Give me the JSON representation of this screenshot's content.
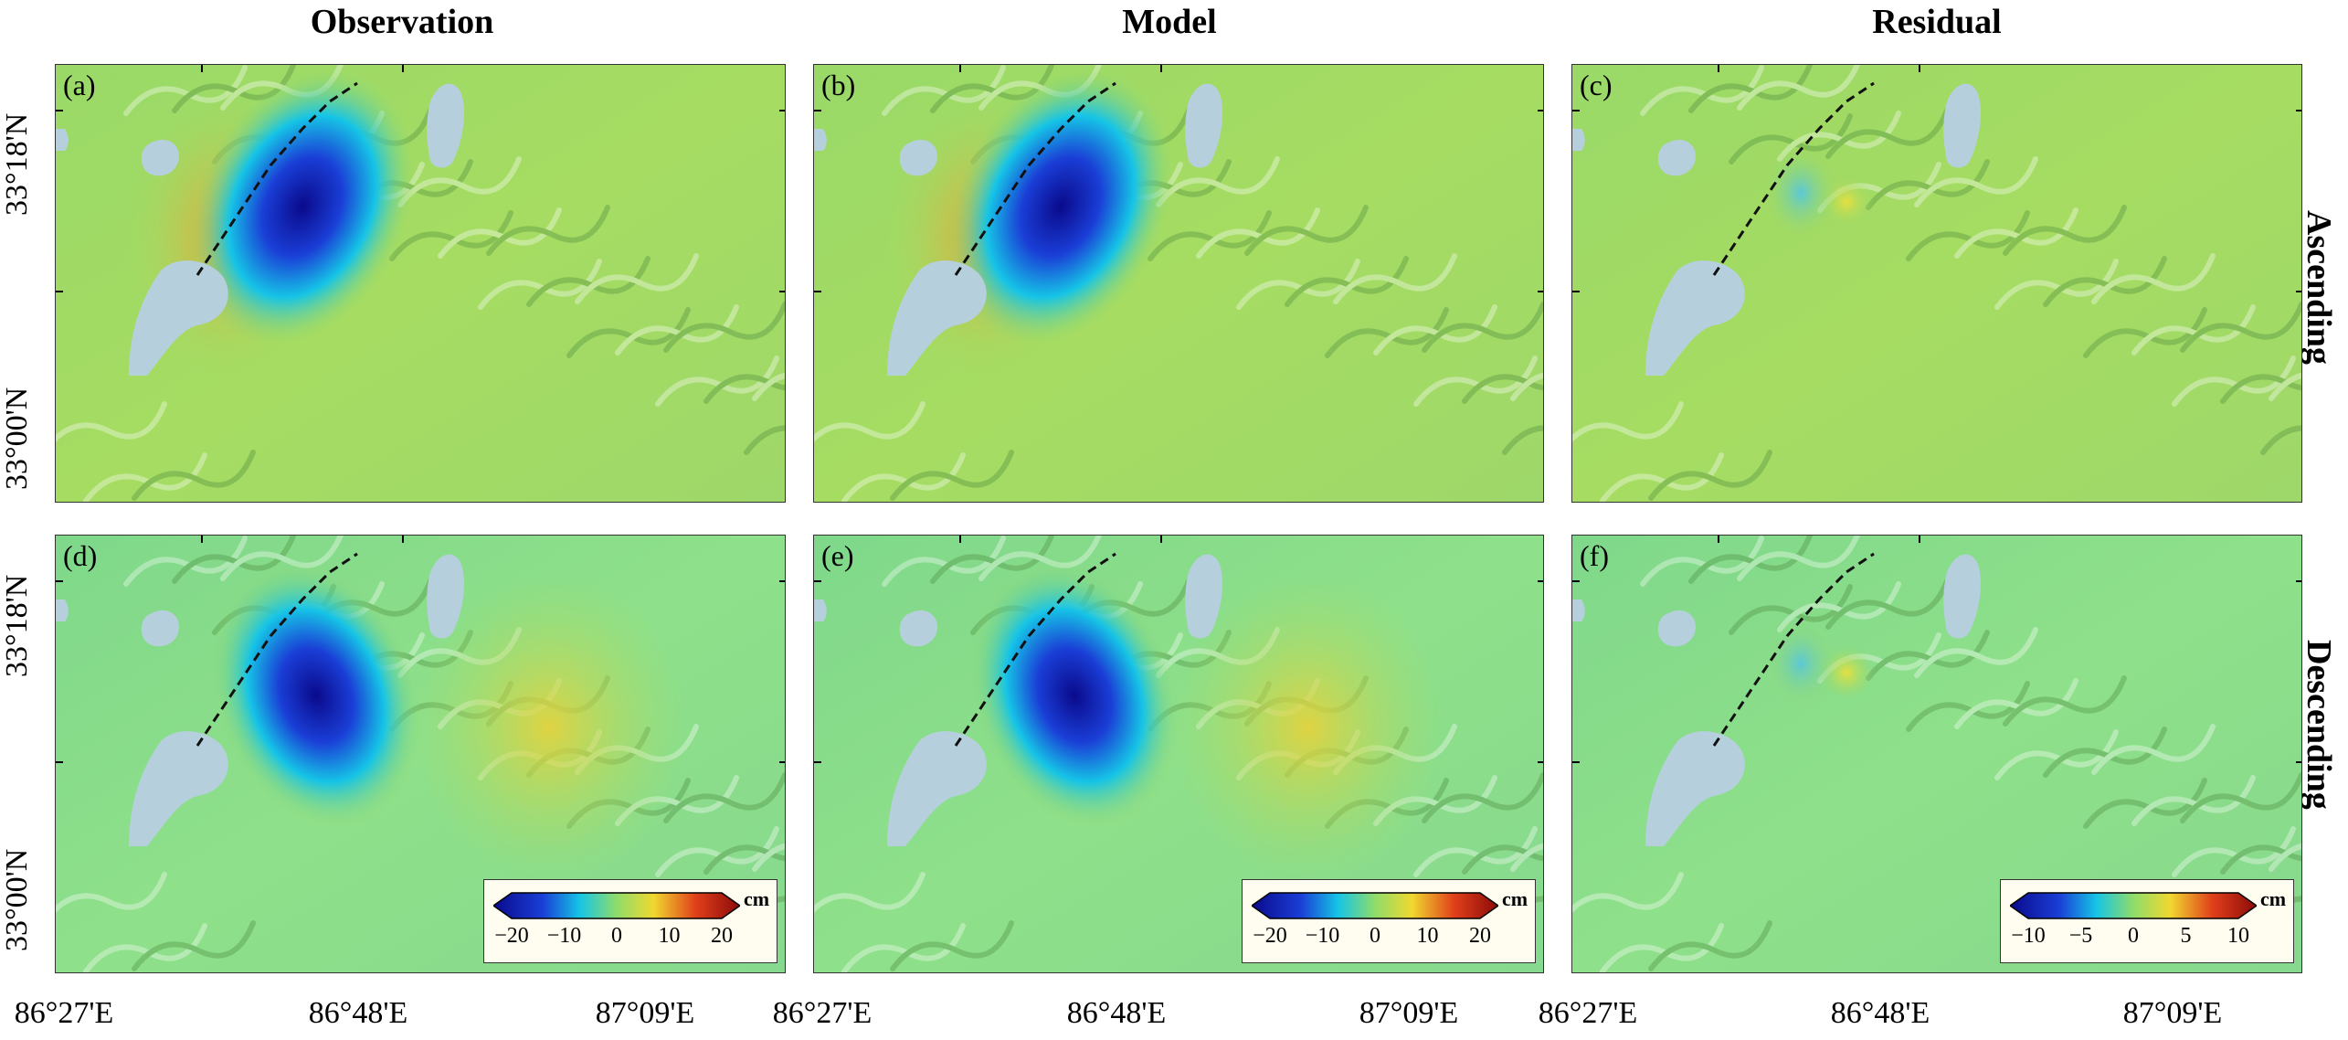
{
  "columns": [
    "Observation",
    "Model",
    "Residual"
  ],
  "rows": [
    "Ascending",
    "Descending"
  ],
  "lat_labels": [
    "33°18'N",
    "33°00'N"
  ],
  "lon_labels": [
    "86°27'E",
    "86°48'E",
    "87°09'E"
  ],
  "panels": [
    {
      "letter": "(a)",
      "type": "observation",
      "track": "ascending"
    },
    {
      "letter": "(b)",
      "type": "model",
      "track": "ascending"
    },
    {
      "letter": "(c)",
      "type": "residual",
      "track": "ascending"
    },
    {
      "letter": "(d)",
      "type": "observation",
      "track": "descending"
    },
    {
      "letter": "(e)",
      "type": "model",
      "track": "descending"
    },
    {
      "letter": "(f)",
      "type": "residual",
      "track": "descending"
    }
  ],
  "colorbars": [
    {
      "unit": "cm",
      "ticks": [
        "−20",
        "−10",
        "0",
        "10",
        "20"
      ],
      "min": -20,
      "max": 20
    },
    {
      "unit": "cm",
      "ticks": [
        "−20",
        "−10",
        "0",
        "10",
        "20"
      ],
      "min": -20,
      "max": 20
    },
    {
      "unit": "cm",
      "ticks": [
        "−10",
        "−5",
        "0",
        "5",
        "10"
      ],
      "min": -10,
      "max": 10
    }
  ],
  "colors": {
    "background_field": "#8fdc6a",
    "lake": "#b5d0dc",
    "low": "#0a0a8c",
    "mid_low": "#16c4e6",
    "high": "#f0c832",
    "fault": "#111111"
  }
}
